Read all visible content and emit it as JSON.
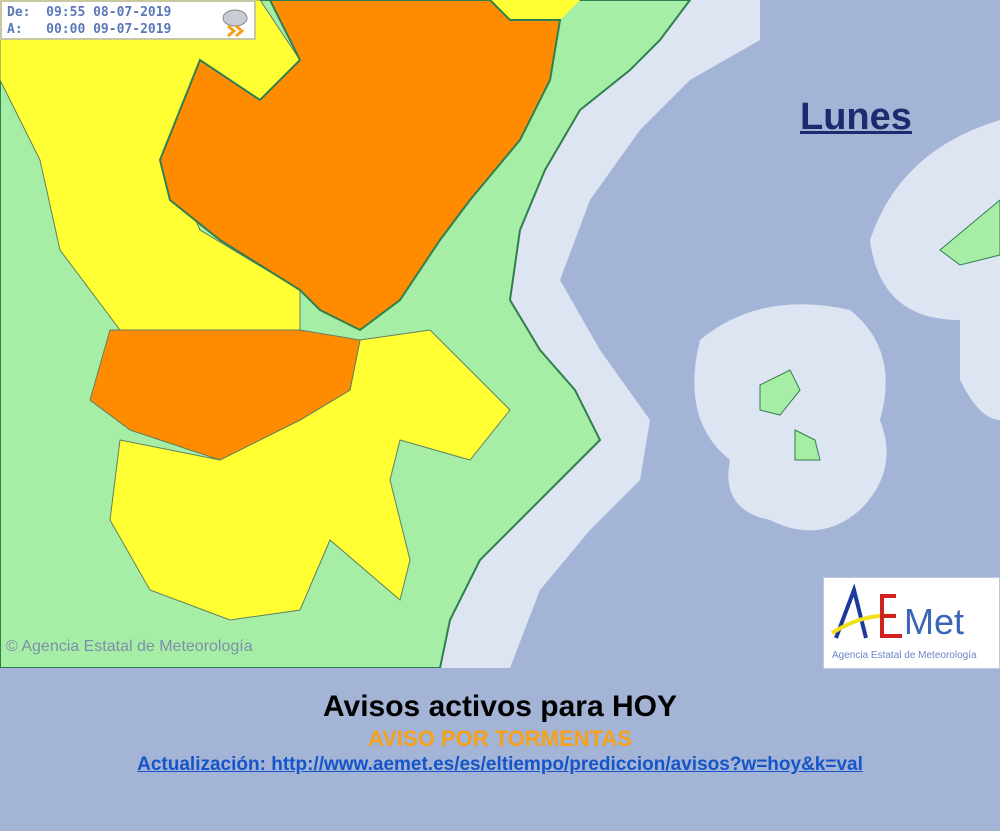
{
  "validity": {
    "from_label": "De:",
    "from_time": "09:55",
    "from_date": "08-07-2019",
    "to_label": "A:",
    "to_time": "00:00",
    "to_date": "09-07-2019",
    "icon": "thunderstorm-icon"
  },
  "day": "Lunes",
  "copyright": "© Agencia Estatal de Meteorología",
  "logo": {
    "text": "AEMet",
    "subtitle": "Agencia Estatal de Meteorología"
  },
  "footer": {
    "title": "Avisos activos para HOY",
    "warning": "AVISO POR TORMENTAS",
    "update_label": "Actualización:",
    "update_link": "http://www.aemet.es/es/eltiempo/prediccion/avisos?w=hoy&k=val"
  },
  "colors": {
    "sea": "#a4b4d6",
    "coastal_buffer": "#dde4f2",
    "land_green": "#a6eea6",
    "yellow": "#ffff33",
    "orange": "#ff8c00",
    "warning_text": "#f5a11a",
    "link": "#1655c8"
  }
}
